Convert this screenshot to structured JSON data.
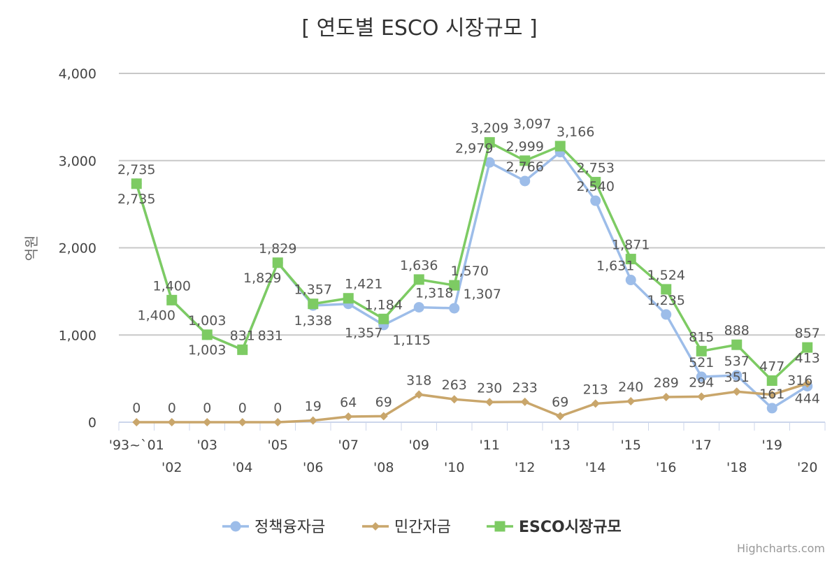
{
  "chart_data": {
    "type": "line",
    "title": "[ 연도별 ESCO 시장규모 ]",
    "ylabel": "억원",
    "xlabel": "",
    "ylim": [
      0,
      4000
    ],
    "yticks": [
      "0",
      "1,000",
      "2,000",
      "3,000",
      "4,000"
    ],
    "ytick_values": [
      0,
      1000,
      2000,
      3000,
      4000
    ],
    "grid": true,
    "legend": "bottom",
    "categories": [
      "'93~`01",
      "'02",
      "'03",
      "'04",
      "'05",
      "'06",
      "'07",
      "'08",
      "'09",
      "'10",
      "'11",
      "'12",
      "'13",
      "'14",
      "'15",
      "'16",
      "'17",
      "'18",
      "'19",
      "'20"
    ],
    "series": [
      {
        "name": "정책융자금",
        "color": "#9dbde9",
        "marker": "circle",
        "values": [
          2735,
          1400,
          1003,
          831,
          1829,
          1338,
          1357,
          1115,
          1318,
          1307,
          2979,
          2766,
          3097,
          2540,
          1631,
          1235,
          521,
          537,
          161,
          413
        ]
      },
      {
        "name": "민간자금",
        "color": "#c9a66b",
        "marker": "diamond",
        "values": [
          0,
          0,
          0,
          0,
          0,
          19,
          64,
          69,
          318,
          263,
          230,
          233,
          69,
          213,
          240,
          289,
          294,
          351,
          316,
          444
        ]
      },
      {
        "name": "ESCO시장규모",
        "color": "#7dcb63",
        "marker": "square",
        "values": [
          2735,
          1400,
          1003,
          831,
          1829,
          1357,
          1421,
          1184,
          1636,
          1570,
          3209,
          2999,
          3166,
          2753,
          1871,
          1524,
          815,
          888,
          477,
          857
        ]
      }
    ]
  },
  "credits": "Highcharts.com"
}
